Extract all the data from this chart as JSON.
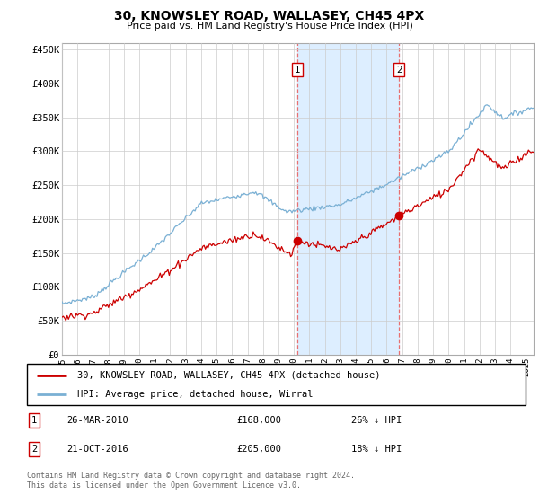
{
  "title": "30, KNOWSLEY ROAD, WALLASEY, CH45 4PX",
  "subtitle": "Price paid vs. HM Land Registry's House Price Index (HPI)",
  "ylabel_ticks": [
    "£0",
    "£50K",
    "£100K",
    "£150K",
    "£200K",
    "£250K",
    "£300K",
    "£350K",
    "£400K",
    "£450K"
  ],
  "ylabel_values": [
    0,
    50000,
    100000,
    150000,
    200000,
    250000,
    300000,
    350000,
    400000,
    450000
  ],
  "ylim": [
    0,
    460000
  ],
  "xlim_start": 1995.0,
  "xlim_end": 2025.5,
  "hpi_color": "#7ab0d4",
  "property_color": "#cc0000",
  "marker1_date": 2010.23,
  "marker1_value": 168000,
  "marker2_date": 2016.8,
  "marker2_value": 205000,
  "vline_color": "#e87070",
  "shade_color": "#ddeeff",
  "legend_label1": "30, KNOWSLEY ROAD, WALLASEY, CH45 4PX (detached house)",
  "legend_label2": "HPI: Average price, detached house, Wirral",
  "note1_label": "1",
  "note1_date": "26-MAR-2010",
  "note1_price": "£168,000",
  "note1_hpi": "26% ↓ HPI",
  "note2_label": "2",
  "note2_date": "21-OCT-2016",
  "note2_price": "£205,000",
  "note2_hpi": "18% ↓ HPI",
  "footer": "Contains HM Land Registry data © Crown copyright and database right 2024.\nThis data is licensed under the Open Government Licence v3.0."
}
